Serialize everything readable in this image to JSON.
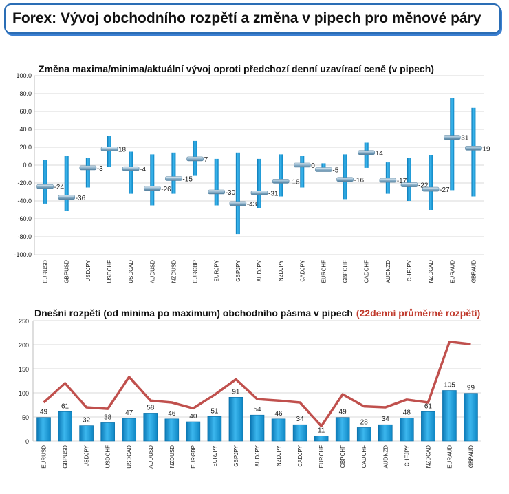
{
  "page_title": "Forex: Vývoj obchodního rozpětí a změna v pipech pro měnové páry",
  "chart_data": [
    {
      "type": "bar",
      "title": "Změna maxima/minima/aktuální vývoj oproti předchozí denní uzavírací ceně (v pipech)",
      "categories": [
        "EURUSD",
        "GBPUSD",
        "USDJPY",
        "USDCHF",
        "USDCAD",
        "AUDUSD",
        "NZDUSD",
        "EURGBP",
        "EURJPY",
        "GBPJPY",
        "AUDJPY",
        "NZDJPY",
        "CADJPY",
        "EURCHF",
        "GBPCHF",
        "CADCHF",
        "AUDNZD",
        "CHFJPY",
        "NZDCAD",
        "EURAUD",
        "GBPAUD"
      ],
      "series": [
        {
          "name": "high",
          "values": [
            6,
            10,
            8,
            33,
            15,
            12,
            14,
            27,
            7,
            14,
            7,
            12,
            10,
            2,
            12,
            25,
            3,
            8,
            11,
            75,
            64
          ]
        },
        {
          "name": "low",
          "values": [
            -43,
            -51,
            -25,
            -2,
            -32,
            -45,
            -32,
            -12,
            -45,
            -77,
            -48,
            -35,
            -25,
            -6,
            -38,
            -3,
            -32,
            -40,
            -50,
            -28,
            -35
          ]
        },
        {
          "name": "current",
          "values": [
            -24,
            -36,
            -3,
            18,
            -4,
            -26,
            -15,
            7,
            -30,
            -43,
            -31,
            -18,
            0,
            -5,
            -16,
            14,
            -17,
            -22,
            -27,
            31,
            19
          ]
        }
      ],
      "data_labels": [
        "-24",
        "-36",
        "-3",
        "18",
        "-4",
        "-26",
        "-15",
        "7",
        "-30",
        "-43",
        "-31",
        "-18",
        "0",
        "-5",
        "-16",
        "14",
        "-17",
        "-22",
        "-27",
        "31",
        "19"
      ],
      "ylim": [
        -100,
        100
      ],
      "yticks": [
        "100.0",
        "80.0",
        "60.0",
        "40.0",
        "20.0",
        "0.0",
        "-20.0",
        "-40.0",
        "-60.0",
        "-80.0",
        "-100.0"
      ],
      "grid": true,
      "colors": {
        "bar": "#1b9ad6",
        "marker": "#8aaec6"
      }
    },
    {
      "type": "bar",
      "title": "Dnešní rozpětí (od minima po maximum) obchodního pásma v pipech",
      "title_extra": "(22denní průměrné rozpětí)",
      "categories": [
        "EURUSD",
        "GBPUSD",
        "USDJPY",
        "USDCHF",
        "USDCAD",
        "AUDUSD",
        "NZDUSD",
        "EURGBP",
        "EURJPY",
        "GBPJPY",
        "AUDJPY",
        "NZDJPY",
        "CADJPY",
        "EURCHF",
        "GBPCHF",
        "CADCHF",
        "AUDNZD",
        "CHFJPY",
        "NZDCAD",
        "EURAUD",
        "GBPAUD"
      ],
      "series": [
        {
          "name": "Dnešní rozpětí",
          "values": [
            49,
            61,
            32,
            38,
            47,
            58,
            46,
            40,
            51,
            91,
            54,
            46,
            34,
            11,
            49,
            28,
            34,
            48,
            61,
            105,
            99
          ]
        },
        {
          "name": "22denní průměrné rozpětí",
          "values": [
            80,
            120,
            70,
            67,
            133,
            84,
            80,
            68,
            96,
            128,
            87,
            84,
            80,
            31,
            97,
            72,
            70,
            86,
            80,
            206,
            201
          ]
        }
      ],
      "data_labels": [
        "49",
        "61",
        "32",
        "38",
        "47",
        "58",
        "46",
        "40",
        "51",
        "91",
        "54",
        "46",
        "34",
        "11",
        "49",
        "28",
        "34",
        "48",
        "61",
        "105",
        "99"
      ],
      "ylim": [
        0,
        250
      ],
      "yticks": [
        "250",
        "200",
        "150",
        "100",
        "50",
        "0"
      ],
      "grid": true,
      "colors": {
        "bar": "#1b9ad6",
        "line": "#c0504d"
      }
    }
  ]
}
